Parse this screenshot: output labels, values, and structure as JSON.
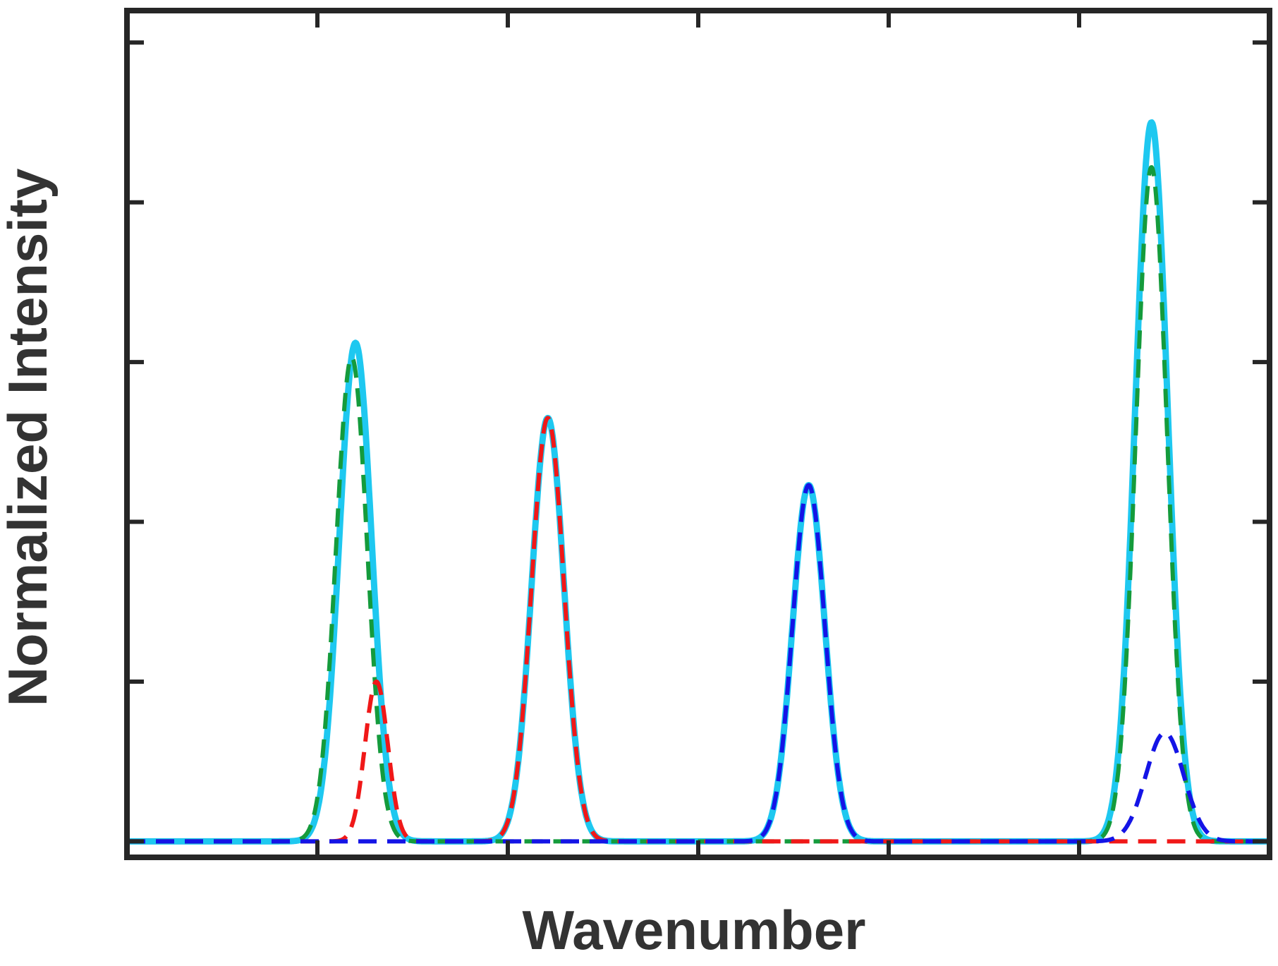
{
  "chart_data": {
    "type": "line",
    "title": "",
    "xlabel": "Wavenumber",
    "ylabel": "Normalized Intensity",
    "xlim": [
      0,
      6
    ],
    "ylim": [
      -0.1,
      5.2
    ],
    "grid": false,
    "legend": "none",
    "x_ticks": [
      1,
      2,
      3,
      4,
      5
    ],
    "y_ticks": [
      0,
      1,
      2,
      3,
      4,
      5
    ],
    "tick_labels_shown": false,
    "series": [
      {
        "style": "solid",
        "color": "#1ec8f0",
        "peaks": [
          {
            "center": 1.2,
            "height": 3.12,
            "width": 0.085
          },
          {
            "center": 2.21,
            "height": 2.65,
            "width": 0.085
          },
          {
            "center": 3.58,
            "height": 2.23,
            "width": 0.085
          },
          {
            "center": 5.38,
            "height": 4.5,
            "width": 0.085
          }
        ]
      },
      {
        "style": "dashed",
        "color": "#149b3c",
        "peaks": [
          {
            "center": 1.18,
            "height": 3.03,
            "width": 0.082
          },
          {
            "center": 5.38,
            "height": 4.22,
            "width": 0.082
          }
        ]
      },
      {
        "style": "dashed",
        "color": "#f01818",
        "peaks": [
          {
            "center": 1.31,
            "height": 1.0,
            "width": 0.06
          },
          {
            "center": 2.21,
            "height": 2.65,
            "width": 0.085
          }
        ]
      },
      {
        "style": "dashed",
        "color": "#1414e6",
        "peaks": [
          {
            "center": 3.58,
            "height": 2.23,
            "width": 0.085
          },
          {
            "center": 5.45,
            "height": 0.68,
            "width": 0.1
          }
        ]
      }
    ]
  }
}
